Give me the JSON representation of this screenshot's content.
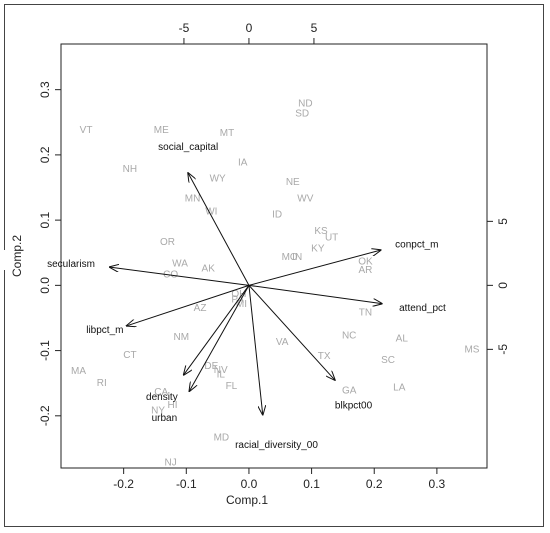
{
  "chart_data": {
    "type": "scatter",
    "subtype": "biplot",
    "title": "",
    "xlabel": "Comp.1",
    "ylabel": "Comp.2",
    "xlim": [
      -0.3,
      0.38
    ],
    "ylim": [
      -0.28,
      0.37
    ],
    "x_ticks": [
      "-0.2",
      "-0.1",
      "0.0",
      "0.1",
      "0.2",
      "0.3"
    ],
    "y_ticks": [
      "-0.2",
      "-0.1",
      "0.0",
      "0.1",
      "0.2",
      "0.3"
    ],
    "top_ticks": [
      "-5",
      "0",
      "5"
    ],
    "right_ticks": [
      "-5",
      "0",
      "5"
    ],
    "grid": false,
    "states": [
      {
        "label": "ND",
        "x": 0.09,
        "y": 0.28
      },
      {
        "label": "SD",
        "x": 0.085,
        "y": 0.265
      },
      {
        "label": "VT",
        "x": -0.26,
        "y": 0.24
      },
      {
        "label": "ME",
        "x": -0.14,
        "y": 0.24
      },
      {
        "label": "MT",
        "x": -0.035,
        "y": 0.235
      },
      {
        "label": "IA",
        "x": -0.01,
        "y": 0.19
      },
      {
        "label": "NH",
        "x": -0.19,
        "y": 0.18
      },
      {
        "label": "WY",
        "x": -0.05,
        "y": 0.165
      },
      {
        "label": "NE",
        "x": 0.07,
        "y": 0.16
      },
      {
        "label": "MN",
        "x": -0.09,
        "y": 0.135
      },
      {
        "label": "WV",
        "x": 0.09,
        "y": 0.135
      },
      {
        "label": "WI",
        "x": -0.06,
        "y": 0.115
      },
      {
        "label": "ID",
        "x": 0.045,
        "y": 0.11
      },
      {
        "label": "KS",
        "x": 0.115,
        "y": 0.085
      },
      {
        "label": "UT",
        "x": 0.132,
        "y": 0.075
      },
      {
        "label": "OR",
        "x": -0.13,
        "y": 0.068
      },
      {
        "label": "KY",
        "x": 0.11,
        "y": 0.058
      },
      {
        "label": "MO",
        "x": 0.065,
        "y": 0.045
      },
      {
        "label": "IN",
        "x": 0.077,
        "y": 0.045
      },
      {
        "label": "OK",
        "x": 0.186,
        "y": 0.038
      },
      {
        "label": "AR",
        "x": 0.186,
        "y": 0.025
      },
      {
        "label": "WA",
        "x": -0.11,
        "y": 0.035
      },
      {
        "label": "AK",
        "x": -0.065,
        "y": 0.027
      },
      {
        "label": "CO",
        "x": -0.125,
        "y": 0.018
      },
      {
        "label": "OH",
        "x": -0.016,
        "y": -0.012
      },
      {
        "label": "PA",
        "x": -0.018,
        "y": -0.02
      },
      {
        "label": "MI",
        "x": -0.012,
        "y": -0.027
      },
      {
        "label": "AZ",
        "x": -0.078,
        "y": -0.033
      },
      {
        "label": "TN",
        "x": 0.186,
        "y": -0.04
      },
      {
        "label": "NC",
        "x": 0.16,
        "y": -0.075
      },
      {
        "label": "AL",
        "x": 0.244,
        "y": -0.08
      },
      {
        "label": "NM",
        "x": -0.108,
        "y": -0.078
      },
      {
        "label": "VA",
        "x": 0.053,
        "y": -0.085
      },
      {
        "label": "MS",
        "x": 0.356,
        "y": -0.097
      },
      {
        "label": "CT",
        "x": -0.19,
        "y": -0.105
      },
      {
        "label": "TX",
        "x": 0.12,
        "y": -0.107
      },
      {
        "label": "SC",
        "x": 0.222,
        "y": -0.113
      },
      {
        "label": "MA",
        "x": -0.272,
        "y": -0.13
      },
      {
        "label": "DE",
        "x": -0.06,
        "y": -0.122
      },
      {
        "label": "NV",
        "x": -0.045,
        "y": -0.128
      },
      {
        "label": "IL",
        "x": -0.045,
        "y": -0.135
      },
      {
        "label": "RI",
        "x": -0.235,
        "y": -0.148
      },
      {
        "label": "FL",
        "x": -0.028,
        "y": -0.153
      },
      {
        "label": "LA",
        "x": 0.24,
        "y": -0.155
      },
      {
        "label": "GA",
        "x": 0.16,
        "y": -0.16
      },
      {
        "label": "CA",
        "x": -0.14,
        "y": -0.162
      },
      {
        "label": "HI",
        "x": -0.122,
        "y": -0.182
      },
      {
        "label": "NY",
        "x": -0.145,
        "y": -0.19
      },
      {
        "label": "MD",
        "x": -0.044,
        "y": -0.232
      },
      {
        "label": "NJ",
        "x": -0.125,
        "y": -0.27
      }
    ],
    "variables": [
      {
        "label": "social_capital",
        "x": -0.097,
        "y": 0.172,
        "ldx": 0,
        "ldy": 0.042
      },
      {
        "label": "secularism",
        "x": -0.222,
        "y": 0.028,
        "ldx": -0.062,
        "ldy": 0.006
      },
      {
        "label": "libpct_m",
        "x": -0.195,
        "y": -0.062,
        "ldx": -0.035,
        "ldy": -0.005
      },
      {
        "label": "conpct_m",
        "x": 0.21,
        "y": 0.054,
        "ldx": 0.058,
        "ldy": 0.01
      },
      {
        "label": "attend_pct",
        "x": 0.212,
        "y": -0.028,
        "ldx": 0.065,
        "ldy": -0.005
      },
      {
        "label": "blkpct00",
        "x": 0.137,
        "y": -0.145,
        "ldx": 0.03,
        "ldy": -0.038
      },
      {
        "label": "density",
        "x": -0.104,
        "y": -0.137,
        "ldx": -0.035,
        "ldy": -0.033
      },
      {
        "label": "urban",
        "x": -0.095,
        "y": -0.162,
        "ldx": -0.04,
        "ldy": -0.04
      },
      {
        "label": "racial_diversity_00",
        "x": 0.022,
        "y": -0.198,
        "ldx": 0.022,
        "ldy": -0.045
      }
    ]
  }
}
